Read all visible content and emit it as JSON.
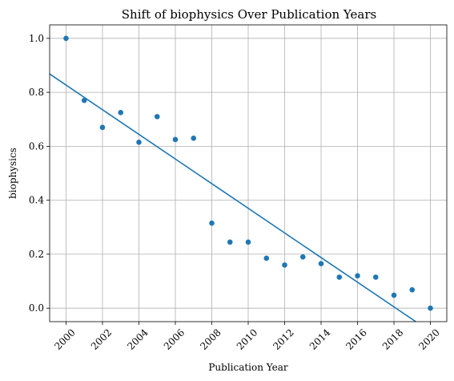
{
  "chart_data": {
    "type": "scatter",
    "title": "Shift of biophysics Over Publication Years",
    "xlabel": "Publication Year",
    "ylabel": "biophysics",
    "xlim": [
      1999.1,
      2020.9
    ],
    "ylim": [
      -0.05,
      1.05
    ],
    "x_ticks": [
      2000,
      2002,
      2004,
      2006,
      2008,
      2010,
      2012,
      2014,
      2016,
      2018,
      2020
    ],
    "y_ticks": [
      0.0,
      0.2,
      0.4,
      0.6,
      0.8,
      1.0
    ],
    "grid": true,
    "color": "#1f77b4",
    "series": [
      {
        "x": [
          2000,
          2001,
          2002,
          2003,
          2004,
          2005,
          2006,
          2007,
          2008,
          2009,
          2010,
          2011,
          2012,
          2013,
          2014,
          2015,
          2016,
          2017,
          2018,
          2019,
          2020
        ],
        "y": [
          1.0,
          0.77,
          0.67,
          0.725,
          0.615,
          0.71,
          0.625,
          0.63,
          0.315,
          0.245,
          0.245,
          0.185,
          0.16,
          0.19,
          0.165,
          0.115,
          0.12,
          0.115,
          0.048,
          0.068,
          0.0
        ]
      }
    ],
    "trend_line": {
      "x": [
        1999.1,
        2019.2
      ],
      "y": [
        0.868,
        -0.05
      ]
    }
  }
}
